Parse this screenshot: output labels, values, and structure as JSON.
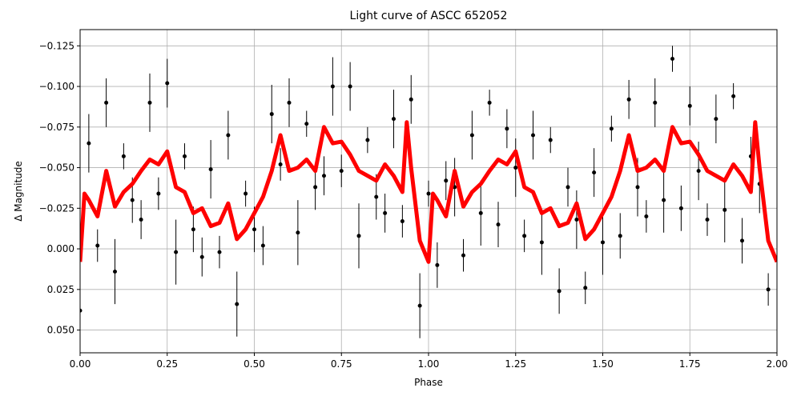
{
  "chart_data": {
    "type": "errorbar_line",
    "title": "Light curve of ASCC 652052",
    "xlabel": "Phase",
    "ylabel": "Δ Magnitude",
    "xlim": [
      0,
      2
    ],
    "ylim": [
      0.064,
      -0.135
    ],
    "grid": true,
    "xticks": [
      {
        "value": 0,
        "label": "0.00"
      },
      {
        "value": 0.25,
        "label": "0.25"
      },
      {
        "value": 0.5,
        "label": "0.50"
      },
      {
        "value": 0.75,
        "label": "0.75"
      },
      {
        "value": 1,
        "label": "1.00"
      },
      {
        "value": 1.25,
        "label": "1.25"
      },
      {
        "value": 1.5,
        "label": "1.50"
      },
      {
        "value": 1.75,
        "label": "1.75"
      },
      {
        "value": 2,
        "label": "2.00"
      }
    ],
    "yticks": [
      {
        "value": -0.125,
        "label": "−0.125"
      },
      {
        "value": -0.1,
        "label": "−0.100"
      },
      {
        "value": -0.075,
        "label": "−0.075"
      },
      {
        "value": -0.05,
        "label": "−0.050"
      },
      {
        "value": -0.025,
        "label": "−0.025"
      },
      {
        "value": 0,
        "label": "0.000"
      },
      {
        "value": 0.025,
        "label": "0.025"
      },
      {
        "value": 0.05,
        "label": "0.050"
      }
    ],
    "points": {
      "color": "#000000",
      "x": [
        0,
        0.025,
        0.05,
        0.075,
        0.1,
        0.125,
        0.15,
        0.175,
        0.2,
        0.225,
        0.25,
        0.275,
        0.3,
        0.325,
        0.35,
        0.375,
        0.4,
        0.425,
        0.45,
        0.475,
        0.5,
        0.525,
        0.55,
        0.575,
        0.6,
        0.625,
        0.65,
        0.675,
        0.7,
        0.725,
        0.75,
        0.775,
        0.8,
        0.825,
        0.85,
        0.875,
        0.9,
        0.925,
        0.95,
        0.975,
        1,
        1.025,
        1.05,
        1.075,
        1.1,
        1.125,
        1.15,
        1.175,
        1.2,
        1.225,
        1.25,
        1.275,
        1.3,
        1.325,
        1.35,
        1.375,
        1.4,
        1.425,
        1.45,
        1.475,
        1.5,
        1.525,
        1.55,
        1.575,
        1.6,
        1.625,
        1.65,
        1.675,
        1.7,
        1.725,
        1.75,
        1.775,
        1.8,
        1.825,
        1.85,
        1.875,
        1.9,
        1.925,
        1.95,
        1.975
      ],
      "values": [
        0.038,
        -0.065,
        -0.002,
        -0.09,
        0.014,
        -0.057,
        -0.03,
        -0.018,
        -0.09,
        -0.034,
        -0.102,
        0.002,
        -0.057,
        -0.012,
        0.005,
        -0.049,
        0.002,
        -0.07,
        0.034,
        -0.034,
        -0.012,
        -0.002,
        -0.083,
        -0.052,
        -0.09,
        -0.01,
        -0.077,
        -0.038,
        -0.045,
        -0.1,
        -0.048,
        -0.1,
        -0.008,
        -0.067,
        -0.032,
        -0.022,
        -0.08,
        -0.017,
        -0.092,
        0.035,
        -0.034,
        0.01,
        -0.042,
        -0.038,
        0.004,
        -0.07,
        -0.022,
        -0.09,
        -0.015,
        -0.074,
        -0.05,
        -0.008,
        -0.07,
        -0.004,
        -0.067,
        0.026,
        -0.038,
        -0.018,
        0.024,
        -0.047,
        -0.004,
        -0.074,
        -0.008,
        -0.092,
        -0.038,
        -0.02,
        -0.09,
        -0.03,
        -0.117,
        -0.025,
        -0.088,
        -0.048,
        -0.018,
        -0.08,
        -0.024,
        -0.094,
        -0.005,
        -0.057,
        -0.04,
        0.025
      ],
      "errors": [
        0.012,
        0.018,
        0.01,
        0.015,
        0.02,
        0.008,
        0.014,
        0.012,
        0.018,
        0.01,
        0.015,
        0.02,
        0.008,
        0.014,
        0.012,
        0.018,
        0.01,
        0.015,
        0.02,
        0.008,
        0.014,
        0.012,
        0.018,
        0.01,
        0.015,
        0.02,
        0.008,
        0.014,
        0.012,
        0.018,
        0.01,
        0.015,
        0.02,
        0.008,
        0.014,
        0.012,
        0.018,
        0.01,
        0.015,
        0.02,
        0.008,
        0.014,
        0.012,
        0.018,
        0.01,
        0.015,
        0.02,
        0.008,
        0.014,
        0.012,
        0.018,
        0.01,
        0.015,
        0.02,
        0.008,
        0.014,
        0.012,
        0.018,
        0.01,
        0.015,
        0.02,
        0.008,
        0.014,
        0.012,
        0.018,
        0.01,
        0.015,
        0.02,
        0.008,
        0.014,
        0.012,
        0.018,
        0.01,
        0.015,
        0.02,
        0.008,
        0.014,
        0.012,
        0.018,
        0.01
      ]
    },
    "curve": {
      "color": "#ff0000",
      "x": [
        0,
        0.0125,
        0.025,
        0.05,
        0.075,
        0.1,
        0.125,
        0.15,
        0.175,
        0.2,
        0.225,
        0.25,
        0.275,
        0.3,
        0.325,
        0.35,
        0.375,
        0.4,
        0.425,
        0.45,
        0.475,
        0.5,
        0.525,
        0.55,
        0.575,
        0.6,
        0.625,
        0.65,
        0.675,
        0.7,
        0.725,
        0.75,
        0.775,
        0.8,
        0.825,
        0.85,
        0.875,
        0.9,
        0.925,
        0.9375,
        0.95,
        0.975,
        1,
        1.0125,
        1.025,
        1.05,
        1.075,
        1.1,
        1.125,
        1.15,
        1.175,
        1.2,
        1.225,
        1.25,
        1.275,
        1.3,
        1.325,
        1.35,
        1.375,
        1.4,
        1.425,
        1.45,
        1.475,
        1.5,
        1.525,
        1.55,
        1.575,
        1.6,
        1.625,
        1.65,
        1.675,
        1.7,
        1.725,
        1.75,
        1.775,
        1.8,
        1.825,
        1.85,
        1.875,
        1.9,
        1.925,
        1.9375,
        1.95,
        1.975,
        2
      ],
      "values": [
        0.008,
        -0.034,
        -0.03,
        -0.02,
        -0.048,
        -0.026,
        -0.035,
        -0.04,
        -0.048,
        -0.055,
        -0.052,
        -0.06,
        -0.038,
        -0.035,
        -0.022,
        -0.025,
        -0.014,
        -0.016,
        -0.028,
        -0.006,
        -0.012,
        -0.022,
        -0.032,
        -0.048,
        -0.07,
        -0.048,
        -0.05,
        -0.055,
        -0.048,
        -0.075,
        -0.065,
        -0.066,
        -0.058,
        -0.048,
        -0.045,
        -0.042,
        -0.052,
        -0.045,
        -0.035,
        -0.078,
        -0.05,
        -0.005,
        0.008,
        -0.034,
        -0.03,
        -0.02,
        -0.048,
        -0.026,
        -0.035,
        -0.04,
        -0.048,
        -0.055,
        -0.052,
        -0.06,
        -0.038,
        -0.035,
        -0.022,
        -0.025,
        -0.014,
        -0.016,
        -0.028,
        -0.006,
        -0.012,
        -0.022,
        -0.032,
        -0.048,
        -0.07,
        -0.048,
        -0.05,
        -0.055,
        -0.048,
        -0.075,
        -0.065,
        -0.066,
        -0.058,
        -0.048,
        -0.045,
        -0.042,
        -0.052,
        -0.045,
        -0.035,
        -0.078,
        -0.05,
        -0.005,
        0.008
      ]
    }
  }
}
